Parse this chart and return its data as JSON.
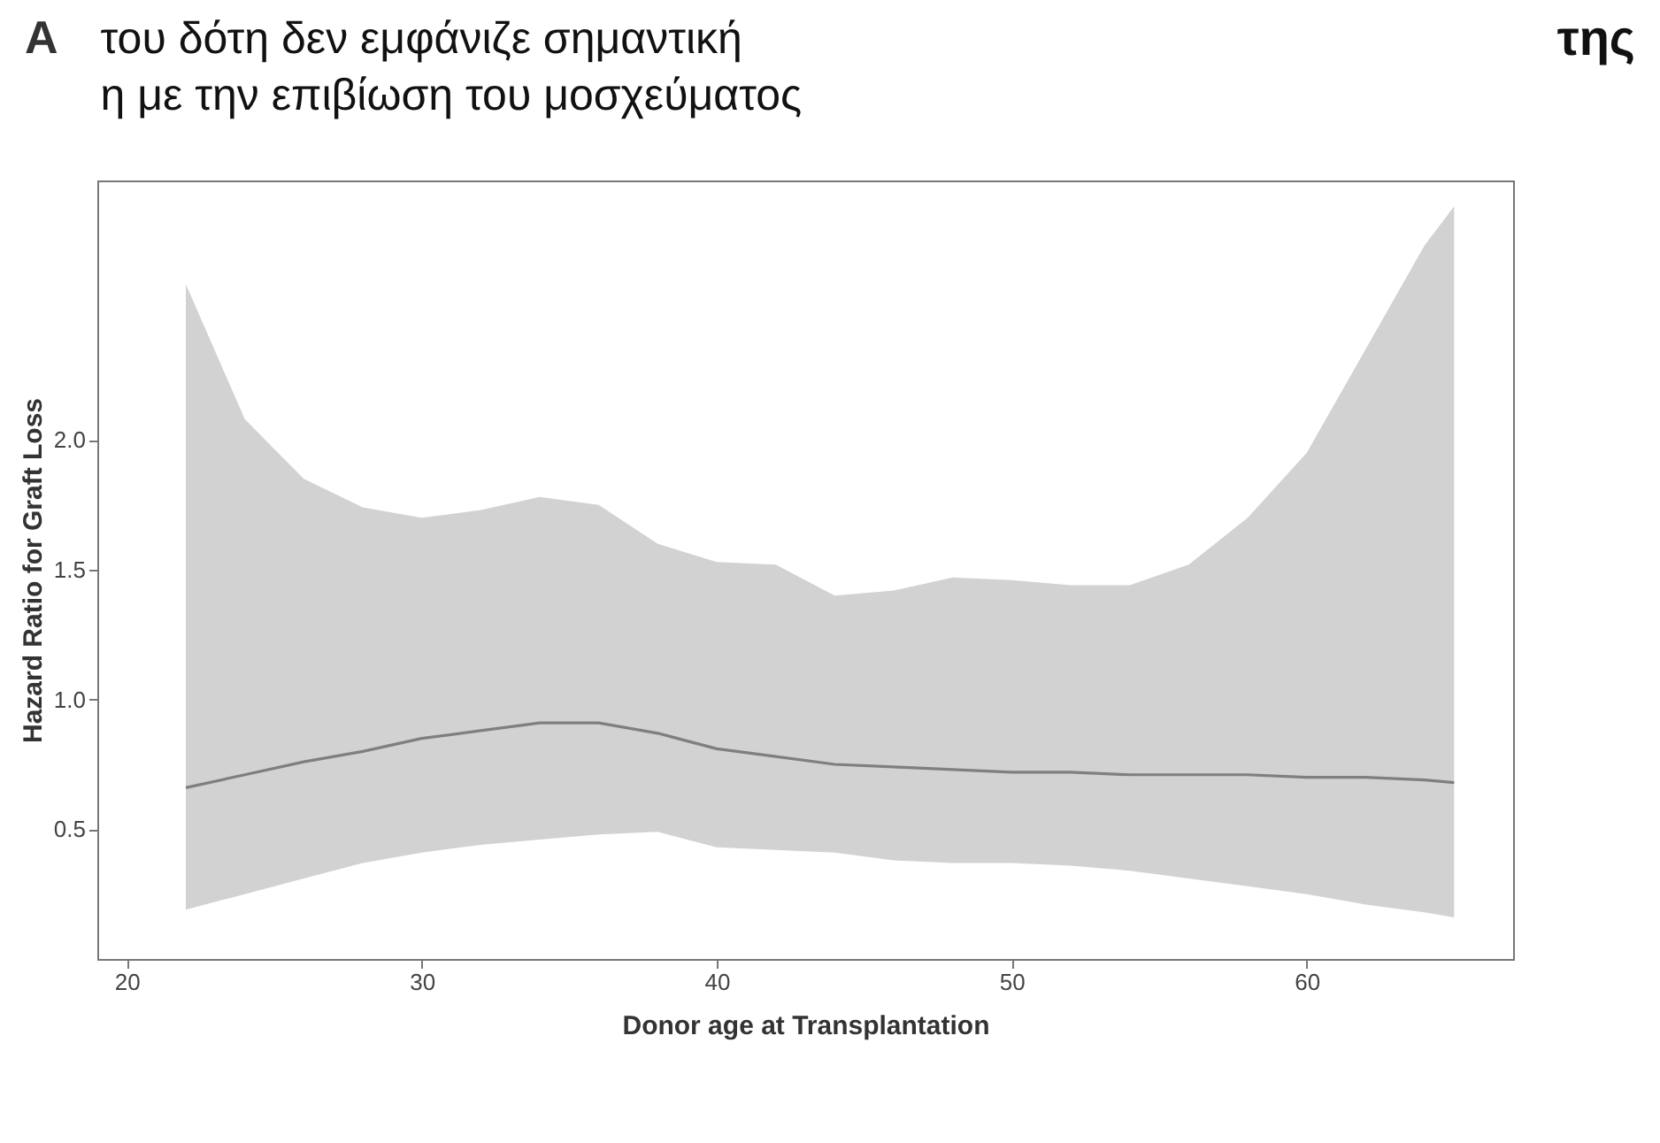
{
  "chart_data": {
    "type": "line",
    "title": "A",
    "xlabel": "Donor age at Transplantation",
    "ylabel": "Hazard Ratio for Graft Loss",
    "annotations": [
      "του δότη δεν εμφάνιζε σημαντική",
      "η με την επιβίωση του μοσχεύματος",
      "της"
    ],
    "x": [
      22,
      24,
      26,
      28,
      30,
      32,
      34,
      36,
      38,
      40,
      42,
      44,
      46,
      48,
      50,
      52,
      54,
      56,
      58,
      60,
      62,
      64,
      65
    ],
    "series": [
      {
        "color": "#7f7f7f",
        "values": [
          0.66,
          0.71,
          0.76,
          0.8,
          0.85,
          0.88,
          0.91,
          0.91,
          0.87,
          0.81,
          0.78,
          0.75,
          0.74,
          0.73,
          0.72,
          0.72,
          0.71,
          0.71,
          0.71,
          0.7,
          0.7,
          0.69,
          0.68
        ],
        "lower": [
          0.19,
          0.25,
          0.31,
          0.37,
          0.41,
          0.44,
          0.46,
          0.48,
          0.49,
          0.43,
          0.42,
          0.41,
          0.38,
          0.37,
          0.37,
          0.36,
          0.34,
          0.31,
          0.28,
          0.25,
          0.21,
          0.18,
          0.16
        ],
        "upper": [
          2.6,
          2.08,
          1.85,
          1.74,
          1.7,
          1.73,
          1.78,
          1.75,
          1.6,
          1.53,
          1.52,
          1.4,
          1.42,
          1.47,
          1.46,
          1.44,
          1.44,
          1.52,
          1.7,
          1.95,
          2.35,
          2.75,
          2.9
        ]
      }
    ],
    "xlim": [
      19,
      67
    ],
    "xticks": [
      20,
      30,
      40,
      50,
      60
    ],
    "ylim": [
      0,
      3
    ],
    "yticks": [
      {
        "value": 0.5,
        "label": "0.5"
      },
      {
        "value": 1,
        "label": "1.0"
      },
      {
        "value": 1.5,
        "label": "1.5"
      },
      {
        "value": 2,
        "label": "2.0"
      }
    ],
    "grid": false,
    "marker": "none",
    "line_style": "solid"
  }
}
